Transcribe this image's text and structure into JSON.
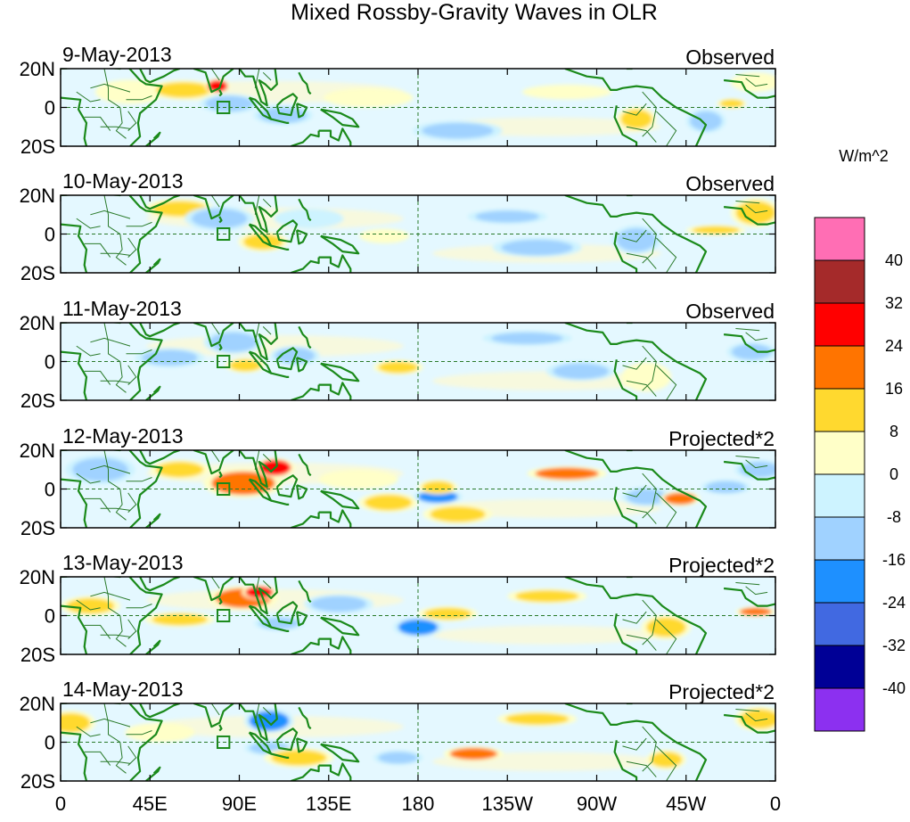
{
  "chart_data": {
    "type": "heatmap",
    "title": "Mixed Rossby-Gravity Waves in OLR",
    "units": "W/m^2",
    "x_tick_labels": [
      "0",
      "45E",
      "90E",
      "135E",
      "180",
      "135W",
      "90W",
      "45W",
      "0"
    ],
    "y_tick_labels": [
      "20N",
      "0",
      "20S"
    ],
    "lon_range": [
      0,
      360
    ],
    "lat_range": [
      -20,
      20
    ],
    "colorbar": {
      "tick_labels": [
        "40",
        "32",
        "24",
        "16",
        "8",
        "0",
        "-8",
        "-16",
        "-24",
        "-32",
        "-40"
      ],
      "levels": [
        40,
        32,
        24,
        16,
        8,
        0,
        -8,
        -16,
        -24,
        -32,
        -40
      ],
      "colors": [
        "#ff6eb4",
        "#a52a2a",
        "#ff0000",
        "#ff7400",
        "#ffd92f",
        "#ffffc8",
        "#cdf3ff",
        "#a0d2ff",
        "#1e90ff",
        "#4169e1",
        "#000096",
        "#8c30f0"
      ]
    },
    "panels": [
      {
        "date": "9-May-2013",
        "label": "Observed",
        "anomalies": [
          {
            "lon": 35,
            "lat": 8,
            "rlon": 14,
            "rlat": 5,
            "v": 6
          },
          {
            "lon": 62,
            "lat": 9,
            "rlon": 14,
            "rlat": 4,
            "v": 12
          },
          {
            "lon": 79,
            "lat": 11,
            "rlon": 5,
            "rlat": 3,
            "v": 26
          },
          {
            "lon": 85,
            "lat": 2,
            "rlon": 12,
            "rlat": 4,
            "v": -10
          },
          {
            "lon": 112,
            "lat": -4,
            "rlon": 12,
            "rlat": 4,
            "v": -9
          },
          {
            "lon": 155,
            "lat": 5,
            "rlon": 18,
            "rlat": 4,
            "v": 6
          },
          {
            "lon": 200,
            "lat": -12,
            "rlon": 18,
            "rlat": 4,
            "v": -9
          },
          {
            "lon": 255,
            "lat": 8,
            "rlon": 18,
            "rlat": 3,
            "v": 7
          },
          {
            "lon": 290,
            "lat": -6,
            "rlon": 8,
            "rlat": 5,
            "v": 13
          },
          {
            "lon": 325,
            "lat": -7,
            "rlon": 8,
            "rlat": 5,
            "v": -10
          },
          {
            "lon": 338,
            "lat": 2,
            "rlon": 6,
            "rlat": 2,
            "v": 12
          },
          {
            "lon": 350,
            "lat": 13,
            "rlon": 10,
            "rlat": 4,
            "v": 6
          }
        ]
      },
      {
        "date": "10-May-2013",
        "label": "Observed",
        "anomalies": [
          {
            "lon": 60,
            "lat": 13,
            "rlon": 14,
            "rlat": 4,
            "v": 11
          },
          {
            "lon": 80,
            "lat": 8,
            "rlon": 14,
            "rlat": 5,
            "v": -10
          },
          {
            "lon": 102,
            "lat": -4,
            "rlon": 10,
            "rlat": 4,
            "v": 10
          },
          {
            "lon": 125,
            "lat": 8,
            "rlon": 14,
            "rlat": 4,
            "v": -8
          },
          {
            "lon": 163,
            "lat": -1,
            "rlon": 10,
            "rlat": 3,
            "v": 6
          },
          {
            "lon": 225,
            "lat": 9,
            "rlon": 16,
            "rlat": 3,
            "v": -9
          },
          {
            "lon": 240,
            "lat": -7,
            "rlon": 18,
            "rlat": 4,
            "v": -9
          },
          {
            "lon": 290,
            "lat": -3,
            "rlon": 10,
            "rlat": 6,
            "v": -10
          },
          {
            "lon": 330,
            "lat": 2,
            "rlon": 12,
            "rlat": 2,
            "v": 11
          },
          {
            "lon": 350,
            "lat": 11,
            "rlon": 10,
            "rlat": 6,
            "v": 10
          }
        ]
      },
      {
        "date": "11-May-2013",
        "label": "Observed",
        "anomalies": [
          {
            "lon": 55,
            "lat": 2,
            "rlon": 14,
            "rlat": 4,
            "v": -9
          },
          {
            "lon": 87,
            "lat": 10,
            "rlon": 12,
            "rlat": 5,
            "v": -12
          },
          {
            "lon": 93,
            "lat": -2,
            "rlon": 8,
            "rlat": 3,
            "v": 12
          },
          {
            "lon": 118,
            "lat": 3,
            "rlon": 10,
            "rlat": 4,
            "v": -9
          },
          {
            "lon": 170,
            "lat": -3,
            "rlon": 10,
            "rlat": 3,
            "v": 11
          },
          {
            "lon": 235,
            "lat": 12,
            "rlon": 18,
            "rlat": 3,
            "v": -9
          },
          {
            "lon": 262,
            "lat": -5,
            "rlon": 14,
            "rlat": 4,
            "v": -9
          },
          {
            "lon": 295,
            "lat": -8,
            "rlon": 10,
            "rlat": 6,
            "v": 7
          },
          {
            "lon": 348,
            "lat": 5,
            "rlon": 10,
            "rlat": 4,
            "v": -9
          }
        ]
      },
      {
        "date": "12-May-2013",
        "label": "Projected*2",
        "anomalies": [
          {
            "lon": 20,
            "lat": 10,
            "rlon": 14,
            "rlat": 6,
            "v": -10
          },
          {
            "lon": 60,
            "lat": 10,
            "rlon": 12,
            "rlat": 4,
            "v": 10
          },
          {
            "lon": 92,
            "lat": 3,
            "rlon": 16,
            "rlat": 6,
            "v": 22
          },
          {
            "lon": 108,
            "lat": 11,
            "rlon": 8,
            "rlat": 4,
            "v": 30
          },
          {
            "lon": 150,
            "lat": 5,
            "rlon": 16,
            "rlat": 4,
            "v": 7
          },
          {
            "lon": 165,
            "lat": -7,
            "rlon": 12,
            "rlat": 4,
            "v": 13
          },
          {
            "lon": 190,
            "lat": -4,
            "rlon": 10,
            "rlat": 3,
            "v": -22
          },
          {
            "lon": 190,
            "lat": 1,
            "rlon": 8,
            "rlat": 3,
            "v": 14
          },
          {
            "lon": 200,
            "lat": -13,
            "rlon": 14,
            "rlat": 4,
            "v": 10
          },
          {
            "lon": 255,
            "lat": 8,
            "rlon": 16,
            "rlat": 3,
            "v": 18
          },
          {
            "lon": 295,
            "lat": -4,
            "rlon": 10,
            "rlat": 4,
            "v": -12
          },
          {
            "lon": 312,
            "lat": -5,
            "rlon": 8,
            "rlat": 3,
            "v": 22
          },
          {
            "lon": 335,
            "lat": 1,
            "rlon": 10,
            "rlat": 3,
            "v": -16
          },
          {
            "lon": 352,
            "lat": 10,
            "rlon": 10,
            "rlat": 4,
            "v": -10
          }
        ]
      },
      {
        "date": "13-May-2013",
        "label": "Projected*2",
        "anomalies": [
          {
            "lon": 15,
            "lat": 5,
            "rlon": 12,
            "rlat": 4,
            "v": 10
          },
          {
            "lon": 60,
            "lat": -2,
            "rlon": 14,
            "rlat": 3,
            "v": 10
          },
          {
            "lon": 92,
            "lat": 9,
            "rlon": 14,
            "rlat": 5,
            "v": 22
          },
          {
            "lon": 100,
            "lat": 12,
            "rlon": 7,
            "rlat": 3,
            "v": 30
          },
          {
            "lon": 110,
            "lat": -4,
            "rlon": 10,
            "rlat": 3,
            "v": -9
          },
          {
            "lon": 140,
            "lat": 6,
            "rlon": 14,
            "rlat": 4,
            "v": -10
          },
          {
            "lon": 180,
            "lat": -6,
            "rlon": 10,
            "rlat": 4,
            "v": -20
          },
          {
            "lon": 195,
            "lat": 1,
            "rlon": 12,
            "rlat": 3,
            "v": 9
          },
          {
            "lon": 245,
            "lat": 10,
            "rlon": 16,
            "rlat": 3,
            "v": 11
          },
          {
            "lon": 305,
            "lat": -6,
            "rlon": 10,
            "rlat": 5,
            "v": 14
          },
          {
            "lon": 350,
            "lat": 2,
            "rlon": 8,
            "rlat": 2,
            "v": 20
          }
        ]
      },
      {
        "date": "14-May-2013",
        "label": "Projected*2",
        "anomalies": [
          {
            "lon": 5,
            "lat": 10,
            "rlon": 10,
            "rlat": 5,
            "v": 10
          },
          {
            "lon": 50,
            "lat": 5,
            "rlon": 14,
            "rlat": 4,
            "v": 7
          },
          {
            "lon": 105,
            "lat": 11,
            "rlon": 10,
            "rlat": 5,
            "v": -18
          },
          {
            "lon": 105,
            "lat": -3,
            "rlon": 10,
            "rlat": 3,
            "v": -10
          },
          {
            "lon": 120,
            "lat": -8,
            "rlon": 14,
            "rlat": 4,
            "v": 11
          },
          {
            "lon": 170,
            "lat": -8,
            "rlon": 10,
            "rlat": 3,
            "v": -16
          },
          {
            "lon": 208,
            "lat": -6,
            "rlon": 12,
            "rlat": 3,
            "v": 22
          },
          {
            "lon": 240,
            "lat": 12,
            "rlon": 16,
            "rlat": 3,
            "v": 8
          },
          {
            "lon": 305,
            "lat": -9,
            "rlon": 8,
            "rlat": 4,
            "v": 12
          },
          {
            "lon": 352,
            "lat": 12,
            "rlon": 10,
            "rlat": 5,
            "v": 10
          }
        ]
      }
    ]
  }
}
